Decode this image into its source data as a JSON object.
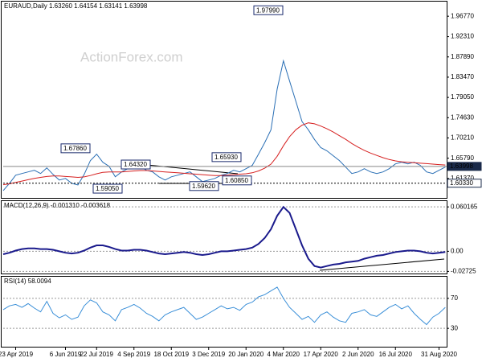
{
  "chart_data": [
    {
      "type": "line",
      "title": "EURAUD,Daily  1.63260 1.64154 1.63141 1.63998",
      "watermark": "ActionForex.com",
      "ylim": [
        1.5695,
        1.9996
      ],
      "yticks": [
        {
          "value": 1.9677,
          "label": "1.96770"
        },
        {
          "value": 1.9231,
          "label": "1.92310"
        },
        {
          "value": 1.8789,
          "label": "1.87890"
        },
        {
          "value": 1.8347,
          "label": "1.83470"
        },
        {
          "value": 1.7905,
          "label": "1.79050"
        },
        {
          "value": 1.7463,
          "label": "1.74630"
        },
        {
          "value": 1.7021,
          "label": "1.70210"
        },
        {
          "value": 1.6579,
          "label": "1.65790"
        },
        {
          "value": 1.6137,
          "label": "1.61370"
        }
      ],
      "price_labels": [
        {
          "value": 1.63998,
          "label": "1.63998"
        },
        {
          "value": 1.6033,
          "label": "1.60330"
        }
      ],
      "annotations": [
        {
          "value": 1.9799,
          "label": "1.97990"
        },
        {
          "value": 1.6786,
          "label": "1.67860"
        },
        {
          "value": 1.6432,
          "label": "1.64320"
        },
        {
          "value": 1.5905,
          "label": "1.59050"
        },
        {
          "value": 1.5962,
          "label": "1.59620"
        },
        {
          "value": 1.6085,
          "label": "1.60850"
        },
        {
          "value": 1.6593,
          "label": "1.65930"
        }
      ],
      "series": [
        {
          "color": "#2a6fb5",
          "values": [
            1.5872,
            1.6031,
            1.6208,
            1.6244,
            1.6279,
            1.6315,
            1.6244,
            1.6367,
            1.6226,
            1.6102,
            1.6137,
            1.6031,
            1.5996,
            1.6226,
            1.6527,
            1.6668,
            1.6491,
            1.6403,
            1.6173,
            1.6279,
            1.635,
            1.6385,
            1.6403,
            1.6315,
            1.6279,
            1.6173,
            1.6102,
            1.6173,
            1.6208,
            1.6244,
            1.6279,
            1.6173,
            1.6067,
            1.6102,
            1.6137,
            1.6208,
            1.6244,
            1.6315,
            1.6279,
            1.635,
            1.6421,
            1.6668,
            1.6916,
            1.7199,
            1.8084,
            1.8704,
            1.8261,
            1.7819,
            1.7376,
            1.7199,
            1.6987,
            1.681,
            1.6739,
            1.6633,
            1.6527,
            1.6385,
            1.6244,
            1.6279,
            1.635,
            1.6279,
            1.6244,
            1.6279,
            1.635,
            1.6456,
            1.6491,
            1.6456,
            1.6491,
            1.6421,
            1.6279,
            1.6244,
            1.6315,
            1.6385
          ]
        },
        {
          "color": "#d62020",
          "values": [
            1.6,
            1.602,
            1.605,
            1.608,
            1.611,
            1.614,
            1.616,
            1.618,
            1.619,
            1.619,
            1.618,
            1.617,
            1.616,
            1.617,
            1.62,
            1.624,
            1.627,
            1.628,
            1.628,
            1.628,
            1.629,
            1.63,
            1.631,
            1.631,
            1.63,
            1.629,
            1.628,
            1.627,
            1.626,
            1.625,
            1.624,
            1.623,
            1.622,
            1.621,
            1.62,
            1.62,
            1.621,
            1.622,
            1.623,
            1.624,
            1.626,
            1.63,
            1.636,
            1.645,
            1.662,
            1.685,
            1.705,
            1.72,
            1.73,
            1.735,
            1.733,
            1.728,
            1.722,
            1.715,
            1.707,
            1.699,
            1.69,
            1.682,
            1.675,
            1.669,
            1.664,
            1.659,
            1.655,
            1.652,
            1.65,
            1.649,
            1.648,
            1.647,
            1.646,
            1.645,
            1.644,
            1.643
          ]
        }
      ]
    },
    {
      "type": "line",
      "title": "MACD(12,26,9) -0.001310 -0.003618",
      "ylim": [
        -0.0312,
        0.068
      ],
      "yticks": [
        0.060165,
        {
          "value": 0,
          "label": "0.00"
        },
        -0.02725
      ],
      "series": [
        {
          "color": "#1a1a8c",
          "values": [
            -0.004,
            -0.002,
            0.001,
            0.003,
            0.004,
            0.004,
            0.003,
            0.003,
            0.002,
            0,
            -0.002,
            -0.003,
            -0.002,
            0.001,
            0.005,
            0.008,
            0.008,
            0.006,
            0.003,
            0.001,
            0.001,
            0.002,
            0.002,
            0.001,
            -0.001,
            -0.003,
            -0.004,
            -0.003,
            -0.002,
            -0.001,
            -0.002,
            -0.004,
            -0.005,
            -0.004,
            -0.002,
            0,
            0,
            0.001,
            0.002,
            0.003,
            0.005,
            0.01,
            0.018,
            0.03,
            0.048,
            0.06,
            0.052,
            0.03,
            0.008,
            -0.01,
            -0.02,
            -0.022,
            -0.02,
            -0.018,
            -0.017,
            -0.015,
            -0.014,
            -0.013,
            -0.01,
            -0.008,
            -0.006,
            -0.005,
            -0.003,
            -0.001,
            0,
            0.001,
            0.001,
            0,
            -0.002,
            -0.003,
            -0.002,
            -0.001
          ]
        }
      ]
    },
    {
      "type": "line",
      "title": "RSI(14) 58.0094",
      "ylim": [
        4.4,
        98.9
      ],
      "yticks": [
        70,
        30
      ],
      "categories": [
        null,
        null,
        "23 Apr 2019",
        null,
        null,
        null,
        null,
        null,
        null,
        null,
        "6 Jun 2019",
        null,
        null,
        null,
        null,
        "22 Jul 2019",
        null,
        null,
        null,
        null,
        null,
        "4 Sep 2019",
        null,
        null,
        null,
        null,
        null,
        "18 Oct 2019",
        null,
        null,
        null,
        null,
        null,
        "3 Dec 2019",
        null,
        null,
        null,
        null,
        null,
        "20 Jan 2020",
        null,
        null,
        null,
        null,
        null,
        "4 Mar 2020",
        null,
        null,
        null,
        null,
        null,
        "17 Apr 2020",
        null,
        null,
        null,
        null,
        null,
        "2 Jun 2020",
        null,
        null,
        null,
        null,
        null,
        "16 Jul 2020",
        null,
        null,
        null,
        null,
        null,
        null,
        "31 Aug 2020",
        null
      ],
      "series": [
        {
          "color": "#3a8fd8",
          "values": [
            55,
            60,
            62,
            58,
            63,
            57,
            52,
            66,
            50,
            44,
            48,
            42,
            45,
            60,
            68,
            64,
            52,
            48,
            40,
            55,
            58,
            62,
            57,
            50,
            46,
            40,
            48,
            52,
            55,
            58,
            50,
            42,
            45,
            50,
            55,
            60,
            56,
            58,
            54,
            62,
            65,
            72,
            75,
            80,
            85,
            70,
            58,
            50,
            42,
            46,
            38,
            48,
            52,
            45,
            40,
            38,
            50,
            52,
            55,
            48,
            46,
            52,
            58,
            62,
            56,
            60,
            50,
            42,
            35,
            45,
            50,
            58
          ]
        }
      ]
    }
  ]
}
